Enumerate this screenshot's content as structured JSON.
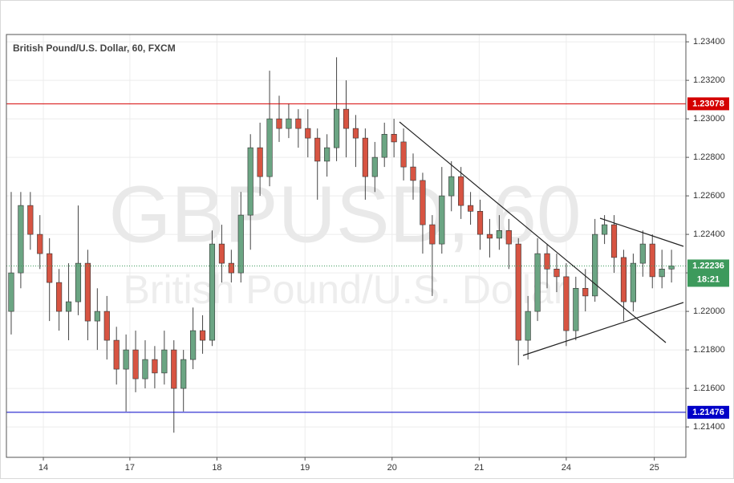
{
  "chart_data": {
    "type": "candlestick",
    "title": "British Pound/U.S. Dollar, 60, FXCM",
    "watermark": [
      "GBPUSD, 60",
      "British Pound/U.S. Dollar"
    ],
    "xlim": [
      0,
      71
    ],
    "ylim": [
      1.21242,
      1.23438
    ],
    "xticks": [
      {
        "value": 3.86,
        "label": "14"
      },
      {
        "value": 12.9,
        "label": "17"
      },
      {
        "value": 22.0,
        "label": "18"
      },
      {
        "value": 31.2,
        "label": "19"
      },
      {
        "value": 40.3,
        "label": "20"
      },
      {
        "value": 49.4,
        "label": "21"
      },
      {
        "value": 58.5,
        "label": "24"
      },
      {
        "value": 67.7,
        "label": "25"
      }
    ],
    "yticks": [
      {
        "value": 1.214,
        "label": "1.21400"
      },
      {
        "value": 1.216,
        "label": "1.21600"
      },
      {
        "value": 1.218,
        "label": "1.21800"
      },
      {
        "value": 1.22,
        "label": "1.22000"
      },
      {
        "value": 1.222,
        "label": "1.22200"
      },
      {
        "value": 1.224,
        "label": "1.22400"
      },
      {
        "value": 1.226,
        "label": "1.22600"
      },
      {
        "value": 1.228,
        "label": "1.22800"
      },
      {
        "value": 1.23,
        "label": "1.23000"
      },
      {
        "value": 1.232,
        "label": "1.23200"
      },
      {
        "value": 1.234,
        "label": "1.23400"
      }
    ],
    "open": [
      1.22,
      1.222,
      1.2255,
      1.224,
      1.223,
      1.2215,
      1.22,
      1.2205,
      1.2225,
      1.2195,
      1.22,
      1.2185,
      1.217,
      1.218,
      1.2165,
      1.2175,
      1.2168,
      1.218,
      1.216,
      1.2175,
      1.219,
      1.2185,
      1.2235,
      1.2225,
      1.222,
      1.225,
      1.2285,
      1.227,
      1.23,
      1.2295,
      1.23,
      1.2295,
      1.229,
      1.2278,
      1.2285,
      1.2305,
      1.2295,
      1.229,
      1.227,
      1.228,
      1.2292,
      1.2288,
      1.2275,
      1.2268,
      1.2245,
      1.2235,
      1.226,
      1.227,
      1.2255,
      1.2252,
      1.224,
      1.2238,
      1.2242,
      1.2235,
      1.2185,
      1.22,
      1.223,
      1.2222,
      1.2218,
      1.219,
      1.2212,
      1.2208,
      1.224,
      1.2245,
      1.2228,
      1.2205,
      1.2225,
      1.2235,
      1.2218,
      1.2222
    ],
    "high": [
      1.2262,
      1.2262,
      1.2262,
      1.225,
      1.2238,
      1.2222,
      1.2225,
      1.2255,
      1.2232,
      1.2212,
      1.2208,
      1.2192,
      1.2188,
      1.219,
      1.2185,
      1.2182,
      1.219,
      1.2185,
      1.218,
      1.2202,
      1.2198,
      1.2242,
      1.2245,
      1.2232,
      1.2262,
      1.2292,
      1.2298,
      1.2325,
      1.2312,
      1.2308,
      1.2305,
      1.2305,
      1.2295,
      1.2292,
      1.2332,
      1.232,
      1.2302,
      1.2295,
      1.2288,
      1.2298,
      1.23,
      1.2295,
      1.2282,
      1.2272,
      1.225,
      1.2275,
      1.2278,
      1.2275,
      1.2262,
      1.2258,
      1.2248,
      1.225,
      1.2248,
      1.2238,
      1.2208,
      1.2238,
      1.2235,
      1.223,
      1.2225,
      1.2218,
      1.2222,
      1.2248,
      1.225,
      1.225,
      1.2232,
      1.223,
      1.2242,
      1.224,
      1.2232,
      1.2232
    ],
    "low": [
      1.2188,
      1.2212,
      1.2232,
      1.2222,
      1.2195,
      1.219,
      1.2185,
      1.2198,
      1.2185,
      1.218,
      1.2175,
      1.2162,
      1.2148,
      1.2158,
      1.216,
      1.216,
      1.2162,
      1.2137,
      1.2148,
      1.217,
      1.2178,
      1.2182,
      1.2215,
      1.2215,
      1.2215,
      1.2232,
      1.226,
      1.2265,
      1.2288,
      1.229,
      1.2285,
      1.228,
      1.2258,
      1.227,
      1.2278,
      1.228,
      1.2275,
      1.2258,
      1.2262,
      1.2275,
      1.228,
      1.2268,
      1.2258,
      1.223,
      1.2208,
      1.223,
      1.2252,
      1.2248,
      1.2245,
      1.2232,
      1.2228,
      1.2232,
      1.2222,
      1.2172,
      1.2175,
      1.2195,
      1.2212,
      1.221,
      1.2182,
      1.2185,
      1.22,
      1.2205,
      1.2235,
      1.222,
      1.2195,
      1.22,
      1.2218,
      1.2212,
      1.2212,
      1.2215
    ],
    "close": [
      1.222,
      1.2255,
      1.224,
      1.223,
      1.2215,
      1.22,
      1.2205,
      1.2225,
      1.2195,
      1.22,
      1.2185,
      1.217,
      1.218,
      1.2165,
      1.2175,
      1.2168,
      1.218,
      1.216,
      1.2175,
      1.219,
      1.2185,
      1.2235,
      1.2225,
      1.222,
      1.225,
      1.2285,
      1.227,
      1.23,
      1.2295,
      1.23,
      1.2295,
      1.229,
      1.2278,
      1.2285,
      1.2305,
      1.2295,
      1.229,
      1.227,
      1.228,
      1.2292,
      1.2288,
      1.2275,
      1.2268,
      1.2245,
      1.2235,
      1.226,
      1.227,
      1.2255,
      1.2252,
      1.224,
      1.2238,
      1.2242,
      1.2235,
      1.2185,
      1.22,
      1.223,
      1.2222,
      1.2218,
      1.219,
      1.2212,
      1.2208,
      1.224,
      1.2245,
      1.2228,
      1.2205,
      1.2225,
      1.2235,
      1.2218,
      1.2222,
      1.22236
    ],
    "up_color": "#6ba583",
    "down_color": "#d75442",
    "levels": [
      {
        "value": 1.23078,
        "color": "#d40000"
      },
      {
        "value": 1.21476,
        "color": "#0000c8"
      }
    ],
    "last_price": {
      "value": 1.22236,
      "countdown": "18:21",
      "color": "#3d9a5c"
    }
  }
}
